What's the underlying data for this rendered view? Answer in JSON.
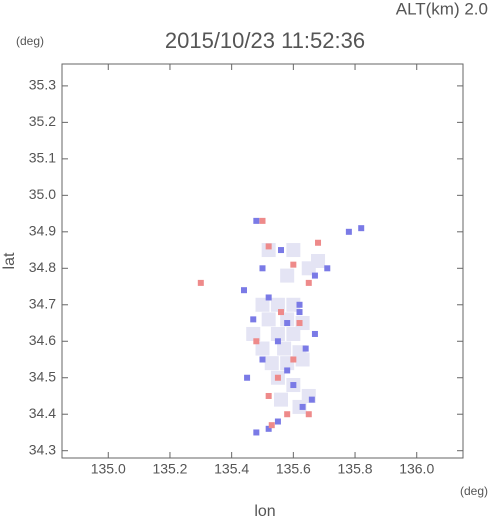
{
  "chart_data": {
    "type": "scatter",
    "title": "2015/10/23 11:52:36",
    "annotation": "ALT(km) 2.0",
    "y_unit": "(deg)",
    "x_unit": "(deg)",
    "y_label": "lat",
    "x_label": "lon",
    "xlim": [
      134.85,
      136.15
    ],
    "ylim": [
      34.28,
      35.36
    ],
    "xticks": [
      {
        "value": 135.0,
        "label": "135.0"
      },
      135.2,
      135.4,
      135.6,
      135.8,
      {
        "value": 136.0,
        "label": "136.0"
      }
    ],
    "yticks": [
      34.3,
      34.4,
      34.5,
      34.6,
      34.7,
      34.8,
      34.9,
      {
        "value": 35.0,
        "label": "35.0"
      },
      35.1,
      35.2,
      35.3
    ],
    "series": [
      {
        "color": "#e4e4f4",
        "x": [
          135.5,
          135.55,
          135.6,
          135.52,
          135.58,
          135.63,
          135.47,
          135.55,
          135.6,
          135.5,
          135.57,
          135.62,
          135.53,
          135.58,
          135.63,
          135.55,
          135.6,
          135.65,
          135.56,
          135.62,
          135.68,
          135.52,
          135.6,
          135.65,
          135.58
        ],
        "values": [
          34.7,
          34.7,
          34.7,
          34.66,
          34.66,
          34.65,
          34.62,
          34.62,
          34.62,
          34.58,
          34.58,
          34.57,
          34.54,
          34.54,
          34.55,
          34.5,
          34.48,
          34.45,
          34.44,
          34.42,
          34.82,
          34.85,
          34.85,
          34.8,
          34.78
        ]
      },
      {
        "color": "#7a7ae6",
        "x": [
          135.52,
          135.48,
          135.55,
          135.63,
          135.66,
          135.6,
          135.5,
          135.55,
          135.58,
          135.62,
          135.47,
          135.52,
          135.64,
          135.45,
          135.58,
          135.78,
          135.82,
          135.5,
          135.56,
          135.67,
          135.71,
          135.48,
          135.62,
          135.44,
          135.67
        ],
        "values": [
          34.36,
          34.35,
          34.38,
          34.42,
          34.44,
          34.48,
          34.55,
          34.6,
          34.65,
          34.68,
          34.66,
          34.72,
          34.58,
          34.5,
          34.52,
          34.9,
          34.91,
          34.8,
          34.85,
          34.78,
          34.8,
          34.93,
          34.7,
          34.74,
          34.62
        ]
      },
      {
        "color": "#ee8a8a",
        "x": [
          135.53,
          135.58,
          135.52,
          135.6,
          135.56,
          135.62,
          135.68,
          135.52,
          135.6,
          135.65,
          135.3,
          135.65,
          135.48,
          135.55,
          135.5
        ],
        "values": [
          34.37,
          34.4,
          34.45,
          34.55,
          34.68,
          34.65,
          34.87,
          34.86,
          34.81,
          34.76,
          34.76,
          34.4,
          34.6,
          34.5,
          34.93
        ]
      }
    ]
  }
}
